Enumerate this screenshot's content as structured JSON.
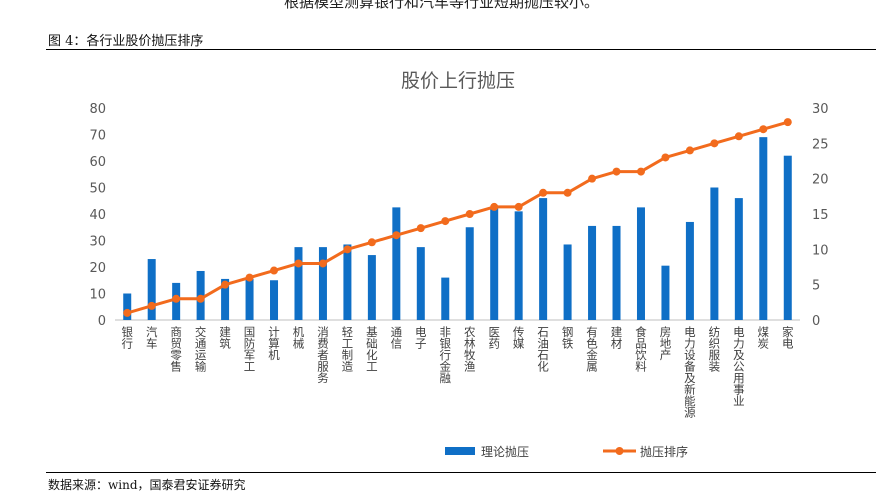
{
  "page": {
    "top_text": "根据模型测算银行和汽车等行业短期抛压较小。",
    "figure_title": "图 4：各行业股价抛压排序",
    "source": "数据来源：wind，国泰君安证券研究"
  },
  "chart_data": {
    "type": "bar",
    "title": "股价上行抛压",
    "categories": [
      "银行",
      "汽车",
      "商贸零售",
      "交通运输",
      "建筑",
      "国防军工",
      "计算机",
      "机械",
      "消费者服务",
      "轻工制造",
      "基础化工",
      "通信",
      "电子",
      "非银行金融",
      "农林牧渔",
      "医药",
      "传媒",
      "石油石化",
      "钢铁",
      "有色金属",
      "建材",
      "食品饮料",
      "房地产",
      "电力设备及新能源",
      "纺织服装",
      "电力及公用事业",
      "煤炭",
      "家电"
    ],
    "series": [
      {
        "name": "理论抛压",
        "type": "bar",
        "axis": "left",
        "color": "#0F6FC6",
        "values": [
          10,
          23,
          14,
          18.5,
          15.5,
          15.5,
          15,
          27.5,
          27.5,
          28.5,
          24.5,
          42.5,
          27.5,
          16,
          35,
          42.5,
          41,
          46,
          28.5,
          35.5,
          35.5,
          42.5,
          20.5,
          37,
          50,
          46,
          69,
          62
        ]
      },
      {
        "name": "抛压排序",
        "type": "line",
        "axis": "right",
        "color": "#F26B1D",
        "values": [
          1,
          2,
          3,
          3,
          5,
          6,
          7,
          8,
          8,
          10,
          11,
          12,
          13,
          14,
          15,
          16,
          16,
          18,
          18,
          20,
          21,
          21,
          23,
          24,
          25,
          26,
          27,
          28
        ]
      }
    ],
    "y_left": {
      "min": 0,
      "max": 80,
      "ticks": [
        "0",
        "10",
        "20",
        "30",
        "40",
        "50",
        "60",
        "70",
        "80"
      ]
    },
    "y_right": {
      "min": 0,
      "max": 30,
      "ticks": [
        "0",
        "5",
        "10",
        "15",
        "20",
        "25",
        "30"
      ]
    },
    "legend_position": "bottom",
    "grid": false
  }
}
